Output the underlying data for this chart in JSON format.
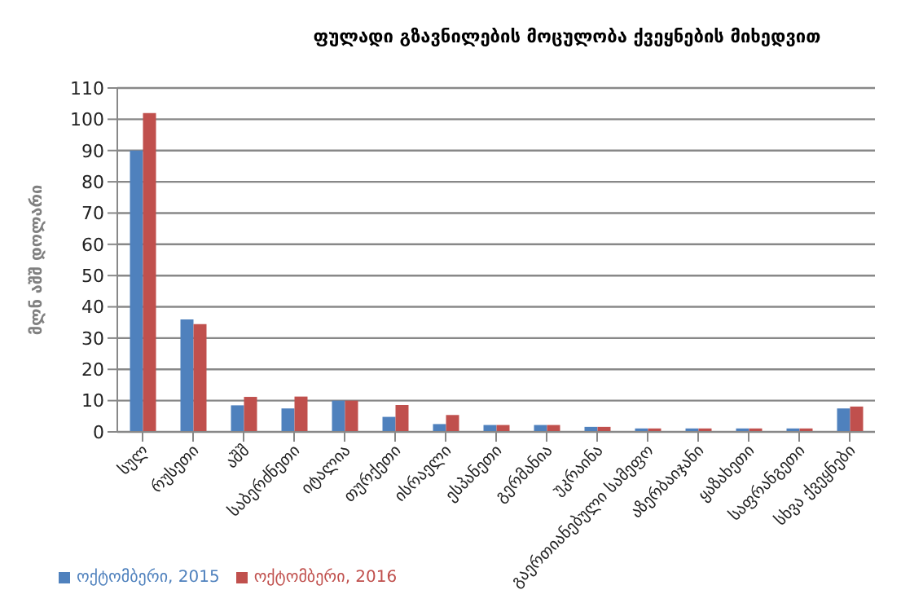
{
  "chart_data": {
    "type": "bar",
    "title": "ფულადი გზავნილების მოცულობა ქვეყნების მიხედვით",
    "ylabel": "მლნ აშშ დოლარი",
    "categories": [
      "სულ",
      "რუსეთი",
      "აშშ",
      "საბერძნეთი",
      "იტალია",
      "თურქეთი",
      "ისრაელი",
      "ესპანეთი",
      "გერმანია",
      "უკრაინა",
      "გაერთიანებული სამეფო",
      "აზერბაიჯანი",
      "ყაზახეთი",
      "საფრანგეთი",
      "სხვა ქვეყნები"
    ],
    "series": [
      {
        "name": "ოქტომბერი, 2015",
        "color": "#4f81bd",
        "values": [
          90,
          36,
          8.5,
          7.5,
          10,
          4.8,
          2.5,
          2.2,
          2.2,
          1.6,
          1.1,
          1.1,
          1.1,
          1.1,
          7.5
        ]
      },
      {
        "name": "ოქტომბერი, 2016",
        "color": "#c0504d",
        "values": [
          102,
          34.5,
          11.2,
          11.3,
          10,
          8.6,
          5.4,
          2.2,
          2.2,
          1.6,
          1.1,
          1.1,
          1.1,
          1.1,
          8.1
        ]
      }
    ],
    "ylim": [
      0,
      110
    ],
    "yticks": [
      0,
      10,
      20,
      30,
      40,
      50,
      60,
      70,
      80,
      90,
      100,
      110
    ],
    "grid": "y",
    "legend": "bottom left"
  }
}
